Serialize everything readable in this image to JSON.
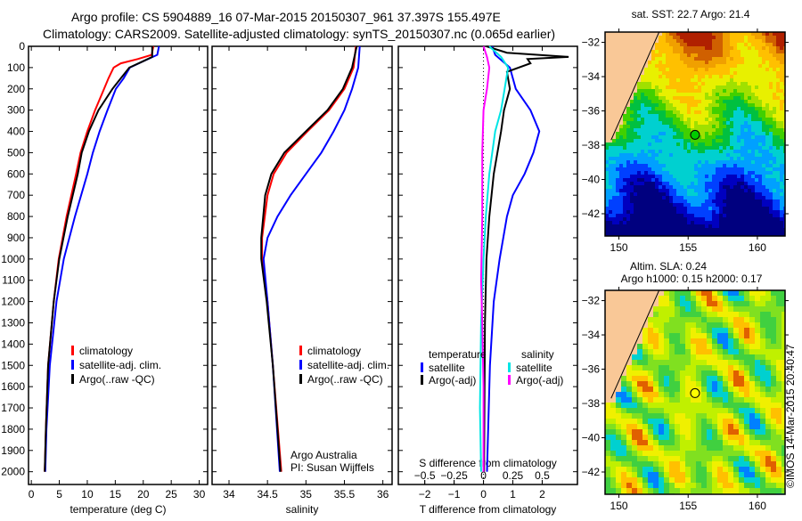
{
  "title": {
    "line1": "Argo profile: CS 5904889_16 07-Mar-2015 20150307_961 37.397S 155.497E",
    "line2": "Climatology: CARS2009. Satellite-adjusted climatology: synTS_20150307.nc (0.065d earlier)"
  },
  "credit": "©IMOS 14-Mar-2015 20:40:47",
  "colors": {
    "climatology": "#ff0000",
    "satellite": "#0000ff",
    "argo": "#000000",
    "sal_satellite": "#00e5e5",
    "sal_argo": "#ff00ff",
    "land": "#f9c897"
  },
  "chart_data": [
    {
      "type": "line",
      "id": "temperature",
      "xlabel": "temperature (deg C)",
      "ylabel": "depth",
      "xlim": [
        -0.5,
        31.5
      ],
      "ylim": [
        2060,
        0
      ],
      "xticks": [
        0,
        5,
        10,
        15,
        20,
        25,
        30
      ],
      "yticks": [
        0,
        100,
        200,
        300,
        400,
        500,
        600,
        700,
        800,
        900,
        1000,
        1100,
        1200,
        1300,
        1400,
        1500,
        1600,
        1700,
        1800,
        1900,
        2000
      ],
      "legend": [
        "climatology",
        "satellite-adj. clim.",
        "Argo(..raw -QC)"
      ],
      "series": [
        {
          "name": "climatology",
          "color": "#ff0000",
          "points": [
            [
              0,
              21.8
            ],
            [
              40,
              21.5
            ],
            [
              60,
              19
            ],
            [
              80,
              16
            ],
            [
              100,
              14.7
            ],
            [
              150,
              13.8
            ],
            [
              200,
              13
            ],
            [
              300,
              11.4
            ],
            [
              400,
              10
            ],
            [
              500,
              8.8
            ],
            [
              600,
              8
            ],
            [
              800,
              6.3
            ],
            [
              1000,
              4.9
            ],
            [
              1200,
              4
            ],
            [
              1500,
              3
            ],
            [
              1800,
              2.6
            ],
            [
              2000,
              2.4
            ]
          ]
        },
        {
          "name": "satellite-adj. clim.",
          "color": "#0000ff",
          "points": [
            [
              0,
              22.8
            ],
            [
              40,
              22.5
            ],
            [
              70,
              20
            ],
            [
              100,
              17.6
            ],
            [
              150,
              16.5
            ],
            [
              200,
              15.1
            ],
            [
              300,
              13.6
            ],
            [
              400,
              12.2
            ],
            [
              500,
              11
            ],
            [
              600,
              10
            ],
            [
              800,
              7.8
            ],
            [
              1000,
              5.8
            ],
            [
              1200,
              4.5
            ],
            [
              1500,
              3.3
            ],
            [
              1800,
              2.7
            ],
            [
              2000,
              2.5
            ]
          ]
        },
        {
          "name": "Argo(..raw -QC)",
          "color": "#000000",
          "points": [
            [
              0,
              21.6
            ],
            [
              50,
              21.6
            ],
            [
              70,
              20
            ],
            [
              100,
              17.5
            ],
            [
              200,
              14.5
            ],
            [
              300,
              12
            ],
            [
              400,
              10.3
            ],
            [
              500,
              9
            ],
            [
              600,
              8.3
            ],
            [
              800,
              6.5
            ],
            [
              1000,
              5
            ],
            [
              1200,
              4
            ],
            [
              1500,
              3
            ],
            [
              1800,
              2.6
            ],
            [
              2000,
              2.4
            ]
          ]
        }
      ]
    },
    {
      "type": "line",
      "id": "salinity",
      "xlabel": "salinity",
      "xlim": [
        33.78,
        36.12
      ],
      "ylim": [
        2060,
        0
      ],
      "xticks": [
        34,
        34.5,
        35,
        35.5,
        36
      ],
      "legend": [
        "climatology",
        "satellite-adj. clim.",
        "Argo(..raw -QC)"
      ],
      "annotation": [
        "Argo Australia",
        "PI: Susan Wijffels"
      ],
      "series": [
        {
          "name": "climatology",
          "color": "#ff0000",
          "points": [
            [
              0,
              35.65
            ],
            [
              100,
              35.62
            ],
            [
              200,
              35.5
            ],
            [
              300,
              35.3
            ],
            [
              400,
              35.02
            ],
            [
              500,
              34.75
            ],
            [
              600,
              34.58
            ],
            [
              700,
              34.5
            ],
            [
              900,
              34.43
            ],
            [
              1000,
              34.43
            ],
            [
              1200,
              34.5
            ],
            [
              1500,
              34.57
            ],
            [
              2000,
              34.68
            ]
          ]
        },
        {
          "name": "satellite-adj. clim.",
          "color": "#0000ff",
          "points": [
            [
              0,
              35.7
            ],
            [
              100,
              35.68
            ],
            [
              200,
              35.6
            ],
            [
              300,
              35.5
            ],
            [
              400,
              35.36
            ],
            [
              500,
              35.2
            ],
            [
              600,
              35
            ],
            [
              700,
              34.8
            ],
            [
              800,
              34.63
            ],
            [
              900,
              34.5
            ],
            [
              1000,
              34.45
            ],
            [
              1200,
              34.5
            ],
            [
              1500,
              34.57
            ],
            [
              2000,
              34.66
            ]
          ]
        },
        {
          "name": "Argo(..raw -QC)",
          "color": "#000000",
          "points": [
            [
              0,
              35.66
            ],
            [
              100,
              35.6
            ],
            [
              200,
              35.48
            ],
            [
              300,
              35.28
            ],
            [
              400,
              35.0
            ],
            [
              500,
              34.72
            ],
            [
              600,
              34.55
            ],
            [
              700,
              34.47
            ],
            [
              900,
              34.42
            ],
            [
              1000,
              34.42
            ],
            [
              1200,
              34.49
            ],
            [
              1500,
              34.57
            ],
            [
              2000,
              34.67
            ]
          ]
        }
      ]
    },
    {
      "type": "line",
      "id": "difference",
      "xlabel": "T difference from climatology",
      "xlabel_top": "S difference from climatology",
      "xlim": [
        -2.9,
        3.2
      ],
      "xlim_top": [
        -0.725,
        0.8
      ],
      "ylim": [
        2060,
        0
      ],
      "xticks": [
        -2,
        -1,
        0,
        1,
        2
      ],
      "xticks_top": [
        -0.5,
        -0.25,
        0,
        0.25,
        0.5
      ],
      "legend_groups": [
        {
          "title": "temperature",
          "items": [
            "satellite",
            "Argo(-adj)"
          ]
        },
        {
          "title": "salinity",
          "items": [
            "satellite",
            "Argo(-adj)"
          ]
        }
      ],
      "series": [
        {
          "name": "temperature satellite",
          "axis": "T",
          "color": "#0000ff",
          "points": [
            [
              0,
              0.3
            ],
            [
              40,
              0.4
            ],
            [
              100,
              0.9
            ],
            [
              200,
              1.1
            ],
            [
              300,
              1.6
            ],
            [
              400,
              1.9
            ],
            [
              500,
              1.7
            ],
            [
              600,
              1.4
            ],
            [
              700,
              1.0
            ],
            [
              800,
              0.8
            ],
            [
              1000,
              0.55
            ],
            [
              1200,
              0.35
            ],
            [
              1500,
              0.22
            ],
            [
              2000,
              0.12
            ]
          ]
        },
        {
          "name": "temperature Argo(-adj)",
          "axis": "T",
          "color": "#000000",
          "points": [
            [
              0,
              0.1
            ],
            [
              30,
              0.8
            ],
            [
              50,
              2.9
            ],
            [
              60,
              1.5
            ],
            [
              80,
              1.6
            ],
            [
              120,
              0.8
            ],
            [
              200,
              0.9
            ],
            [
              300,
              0.7
            ],
            [
              400,
              0.6
            ],
            [
              600,
              0.35
            ],
            [
              800,
              0.2
            ],
            [
              1000,
              0.1
            ],
            [
              1300,
              0.05
            ],
            [
              2000,
              0.02
            ]
          ]
        },
        {
          "name": "salinity satellite",
          "axis": "S",
          "color": "#00e5e5",
          "points": [
            [
              0,
              0.05
            ],
            [
              50,
              0.15
            ],
            [
              100,
              0.21
            ],
            [
              200,
              0.18
            ],
            [
              300,
              0.15
            ],
            [
              400,
              0.1
            ],
            [
              600,
              0.05
            ],
            [
              800,
              0.02
            ],
            [
              1000,
              0.0
            ],
            [
              1300,
              -0.02
            ],
            [
              1700,
              -0.03
            ],
            [
              2000,
              -0.02
            ]
          ]
        },
        {
          "name": "salinity Argo(-adj)",
          "axis": "S",
          "color": "#ff00ff",
          "points": [
            [
              0,
              0.0
            ],
            [
              50,
              0.03
            ],
            [
              100,
              0.05
            ],
            [
              200,
              0.03
            ],
            [
              300,
              0.0
            ],
            [
              500,
              -0.01
            ],
            [
              800,
              -0.01
            ],
            [
              1100,
              -0.02
            ],
            [
              1300,
              -0.01
            ],
            [
              1600,
              0.0
            ],
            [
              2000,
              0.0
            ]
          ]
        }
      ]
    },
    {
      "type": "heatmap",
      "id": "sst_map",
      "title": "sat. SST: 22.7 Argo: 21.4",
      "xlim": [
        149,
        162
      ],
      "ylim": [
        -43.3,
        -31.4
      ],
      "xticks": [
        150,
        155,
        160
      ],
      "yticks": [
        -32,
        -34,
        -36,
        -38,
        -40,
        -42
      ],
      "marker": {
        "lon": 155.497,
        "lat": -37.397,
        "color": "#00cc00"
      }
    },
    {
      "type": "heatmap",
      "id": "sla_map",
      "title": [
        "Altim. SLA: 0.24",
        "Argo h1000: 0.15 h2000: 0.17"
      ],
      "xlim": [
        149,
        162
      ],
      "ylim": [
        -43.3,
        -31.4
      ],
      "xticks": [
        150,
        155,
        160
      ],
      "yticks": [
        -32,
        -34,
        -36,
        -38,
        -40,
        -42
      ],
      "marker": {
        "lon": 155.497,
        "lat": -37.397,
        "color": "#ffff00"
      }
    }
  ]
}
